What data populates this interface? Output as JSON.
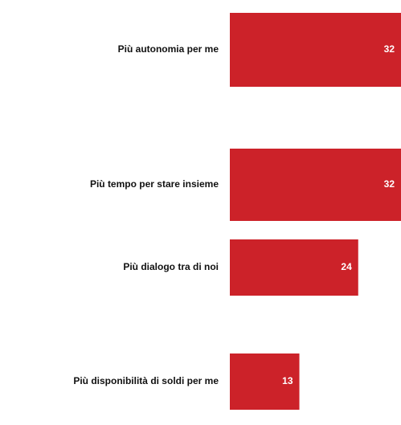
{
  "chart_data": {
    "type": "bar",
    "orientation": "horizontal",
    "categories": [
      "Più autonomia per me",
      "Più tempo per stare insieme",
      "Più dialogo tra di noi",
      "Più disponibilità di soldi per me"
    ],
    "values": [
      32,
      32,
      24,
      13
    ],
    "color": "#cc2229"
  }
}
